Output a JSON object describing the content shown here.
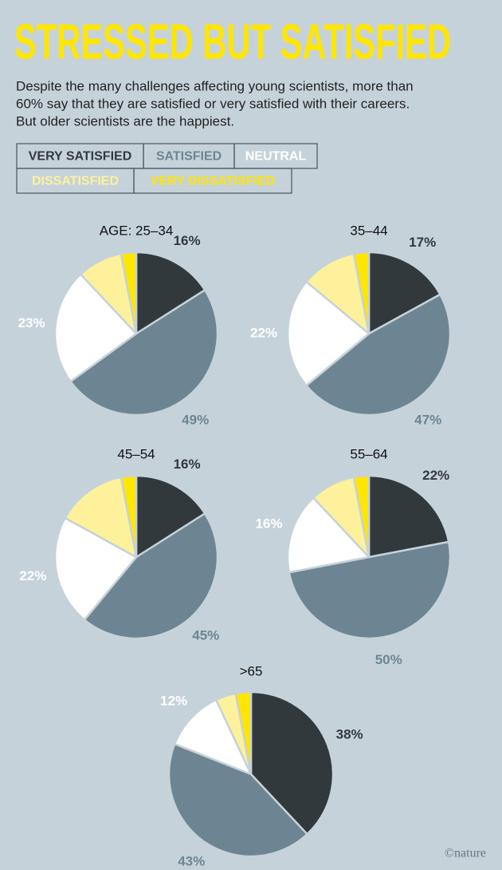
{
  "title": "STRESSED BUT SATISFIED",
  "subtitle": [
    "Despite the many challenges affecting young scientists, more than",
    "60% say that they are satisfied or very satisfied with their careers.",
    "But older scientists are the happiest."
  ],
  "legend": {
    "categories": [
      "VERY SATISFIED",
      "SATISFIED",
      "NEUTRAL",
      "DISSATISFIED",
      "VERY DISSATISFIED"
    ],
    "colors": [
      "#32393d",
      "#6d8592",
      "#ffffff",
      "#fdf19c",
      "#ffe600"
    ]
  },
  "credit": "©nature",
  "chart_data": [
    {
      "type": "pie",
      "title": "AGE: 25–34",
      "values": [
        16,
        49,
        23,
        9,
        3
      ],
      "value_labels": [
        "16%",
        "49%",
        "23%",
        null,
        null
      ]
    },
    {
      "type": "pie",
      "title": "35–44",
      "values": [
        17,
        47,
        22,
        11,
        3
      ],
      "value_labels": [
        "17%",
        "47%",
        "22%",
        null,
        null
      ]
    },
    {
      "type": "pie",
      "title": "45–54",
      "values": [
        16,
        45,
        22,
        14,
        3
      ],
      "value_labels": [
        "16%",
        "45%",
        "22%",
        null,
        null
      ]
    },
    {
      "type": "pie",
      "title": "55–64",
      "values": [
        22,
        50,
        16,
        9,
        3
      ],
      "value_labels": [
        "22%",
        "50%",
        "16%",
        null,
        null
      ]
    },
    {
      "type": "pie",
      "title": ">65",
      "values": [
        38,
        43,
        12,
        4,
        3
      ],
      "value_labels": [
        "38%",
        "43%",
        "12%",
        null,
        null
      ]
    }
  ]
}
